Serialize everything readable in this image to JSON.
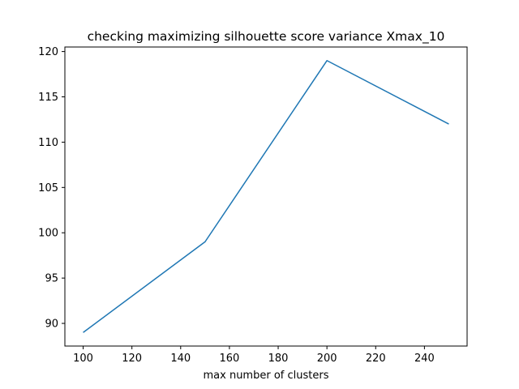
{
  "chart_data": {
    "type": "line",
    "title": "checking maximizing silhouette score variance Xmax_10",
    "xlabel": "max number of clusters",
    "ylabel": "",
    "x": [
      100,
      150,
      200,
      250
    ],
    "series": [
      {
        "values": [
          89,
          99,
          119,
          112
        ],
        "color": "#1f77b4"
      }
    ],
    "xlim": [
      92.5,
      257.5
    ],
    "ylim": [
      87.5,
      120.5
    ],
    "xticks": [
      100,
      120,
      140,
      160,
      180,
      200,
      220,
      240
    ],
    "yticks": [
      90,
      95,
      100,
      105,
      110,
      115,
      120
    ],
    "grid": false,
    "legend": "none"
  }
}
